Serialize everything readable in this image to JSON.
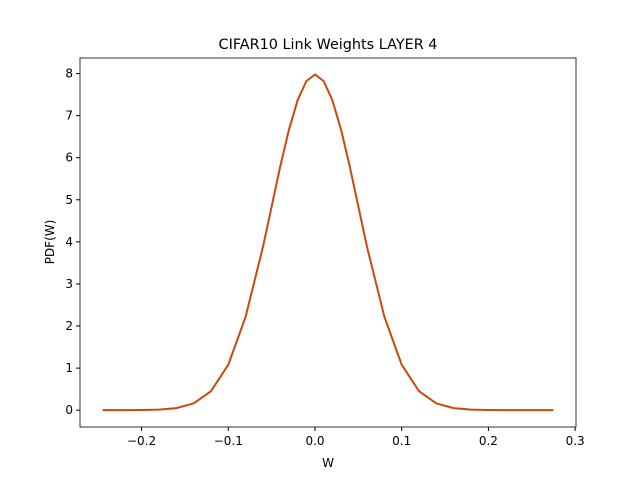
{
  "chart_data": {
    "type": "line",
    "title": "CIFAR10 Link Weights LAYER 4",
    "x_label": "W",
    "y_label": "PDF(W)",
    "x": [
      -0.245,
      -0.22,
      -0.2,
      -0.18,
      -0.16,
      -0.14,
      -0.12,
      -0.1,
      -0.08,
      -0.06,
      -0.04,
      -0.03,
      -0.02,
      -0.01,
      0,
      0.01,
      0.02,
      0.03,
      0.04,
      0.06,
      0.08,
      0.1,
      0.12,
      0.14,
      0.16,
      0.18,
      0.2,
      0.22,
      0.25,
      0.275
    ],
    "series": [
      {
        "color": "#c84a0c",
        "values": [
          0,
          0.0005,
          0.003,
          0.012,
          0.048,
          0.16,
          0.45,
          1.08,
          2.22,
          3.88,
          5.8,
          6.67,
          7.37,
          7.82,
          7.98,
          7.82,
          7.37,
          6.67,
          5.8,
          3.88,
          2.22,
          1.08,
          0.45,
          0.16,
          0.048,
          0.012,
          0.003,
          0.0005,
          0,
          0
        ]
      }
    ],
    "xlim": [
      -0.271,
      0.301
    ],
    "ylim": [
      -0.4,
      8.37
    ],
    "xticks": [
      {
        "value": -0.2,
        "label": "−0.2"
      },
      {
        "value": -0.1,
        "label": "−0.1"
      },
      {
        "value": 0,
        "label": "0.0"
      },
      0.1,
      0.2,
      0.3
    ],
    "yticks": [
      0,
      1,
      2,
      3,
      4,
      5,
      6,
      7,
      8
    ]
  }
}
